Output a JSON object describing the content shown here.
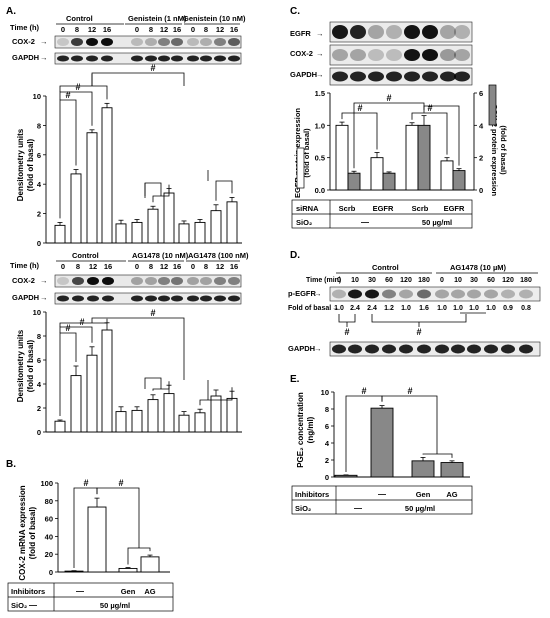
{
  "panels": {
    "A": "A.",
    "B": "B.",
    "C": "C.",
    "D": "D.",
    "E": "E."
  },
  "common": {
    "time_h": "Time (h)",
    "time_min": "Time (min)",
    "cox2": "COX-2",
    "gapdh": "GAPDH",
    "egfr": "EGFR",
    "pegfr": "p-EGFR",
    "hash": "#",
    "densitometry_y1": "Densitometry units",
    "densitometry_y2": "(fold of basal)",
    "dash": "—",
    "sio2_conc": "50 µg/ml",
    "inhibitors": "Inhibitors",
    "sio2": "SiO₂"
  },
  "panelA1": {
    "group_labels": [
      "Control",
      "Genistein (1 nM)",
      "Genistein (10 nM)"
    ],
    "time_ticks": [
      "0",
      "8",
      "12",
      "16"
    ]
  },
  "panelA2": {
    "group_labels": [
      "Control",
      "AG1478 (10 nM)",
      "AG1478 (100 nM)"
    ],
    "time_ticks": [
      "0",
      "8",
      "12",
      "16"
    ]
  },
  "panelB": {
    "ylabel1": "COX-2 mRNA expression",
    "ylabel2": "(fold of basal)",
    "inhibitor_values": [
      "—",
      "Gen",
      "AG"
    ]
  },
  "panelC": {
    "ylabel_left1": "EGFR protein expression",
    "ylabel_left2": "(fold of basal)",
    "ylabel_right1": "COX-2 protein expression",
    "ylabel_right2": "(fold of basal)",
    "sirna": "siRNA",
    "sirna_values": [
      "Scrb",
      "EGFR",
      "Scrb",
      "EGFR"
    ]
  },
  "panelD": {
    "group_labels": [
      "Control",
      "AG1478 (10 µM)"
    ],
    "time_ticks": [
      "0",
      "10",
      "30",
      "60",
      "120",
      "180"
    ],
    "fold_label": "Fold of basal",
    "fold_values": [
      "1.0",
      "2.4",
      "2.4",
      "1.2",
      "1.0",
      "1.6",
      "1.0",
      "1.0",
      "1.0",
      "1.0",
      "0.9",
      "0.8"
    ]
  },
  "panelE": {
    "ylabel1": "PGE₂ concentration",
    "ylabel2": "(ng/ml)",
    "inhibitor_values": [
      "—",
      "Gen",
      "AG"
    ]
  },
  "chart_data": [
    {
      "id": "A1",
      "type": "bar",
      "categories": [
        "0",
        "8",
        "12",
        "16",
        "0",
        "8",
        "12",
        "16",
        "0",
        "8",
        "12",
        "16"
      ],
      "values": [
        1.2,
        4.7,
        7.5,
        9.2,
        1.3,
        1.4,
        2.3,
        3.4,
        1.3,
        1.4,
        2.2,
        2.8
      ],
      "errors": [
        0.2,
        0.3,
        0.2,
        0.3,
        0.25,
        0.2,
        0.2,
        0.3,
        0.2,
        0.2,
        0.4,
        0.3
      ],
      "ylim": [
        0,
        10
      ],
      "yticks": [
        0,
        2,
        4,
        6,
        8,
        10
      ]
    },
    {
      "id": "A2",
      "type": "bar",
      "categories": [
        "0",
        "8",
        "12",
        "16",
        "0",
        "8",
        "12",
        "16",
        "0",
        "8",
        "12",
        "16"
      ],
      "values": [
        0.9,
        4.7,
        6.4,
        8.5,
        1.7,
        1.8,
        2.7,
        3.2,
        1.4,
        1.6,
        3.0,
        2.8
      ],
      "errors": [
        0.1,
        0.8,
        0.7,
        0.6,
        0.4,
        0.3,
        0.4,
        0.7,
        0.3,
        0.3,
        0.5,
        0.6
      ],
      "ylim": [
        0,
        10
      ],
      "yticks": [
        0,
        2,
        4,
        6,
        8,
        10
      ]
    },
    {
      "id": "B",
      "type": "bar",
      "values": [
        1,
        73,
        4,
        17
      ],
      "errors": [
        0.5,
        10,
        1,
        2
      ],
      "ylim": [
        0,
        100
      ],
      "yticks": [
        0,
        20,
        40,
        60,
        80,
        100
      ]
    },
    {
      "id": "C",
      "type": "bar",
      "groups": [
        "Scrb",
        "EGFR",
        "Scrb",
        "EGFR"
      ],
      "series": [
        {
          "values": [
            1.0,
            0.5,
            1.0,
            0.45
          ],
          "errors": [
            0.05,
            0.08,
            0.04,
            0.05
          ]
        },
        {
          "values": [
            0.26,
            0.26,
            1.0,
            0.3
          ],
          "errors": [
            0.03,
            0.02,
            0.15,
            0.03
          ]
        }
      ],
      "ylim": [
        0,
        1.5
      ],
      "yticks": [
        0.0,
        0.5,
        1.0,
        1.5
      ],
      "ylim_right": [
        0,
        6
      ],
      "yticks_right": [
        0,
        2,
        4,
        6
      ]
    },
    {
      "id": "E",
      "type": "bar",
      "values": [
        0.2,
        8.1,
        1.9,
        1.7
      ],
      "errors": [
        0.05,
        0.3,
        0.4,
        0.2
      ],
      "ylim": [
        0,
        10
      ],
      "yticks": [
        0,
        2,
        4,
        6,
        8,
        10
      ]
    }
  ]
}
